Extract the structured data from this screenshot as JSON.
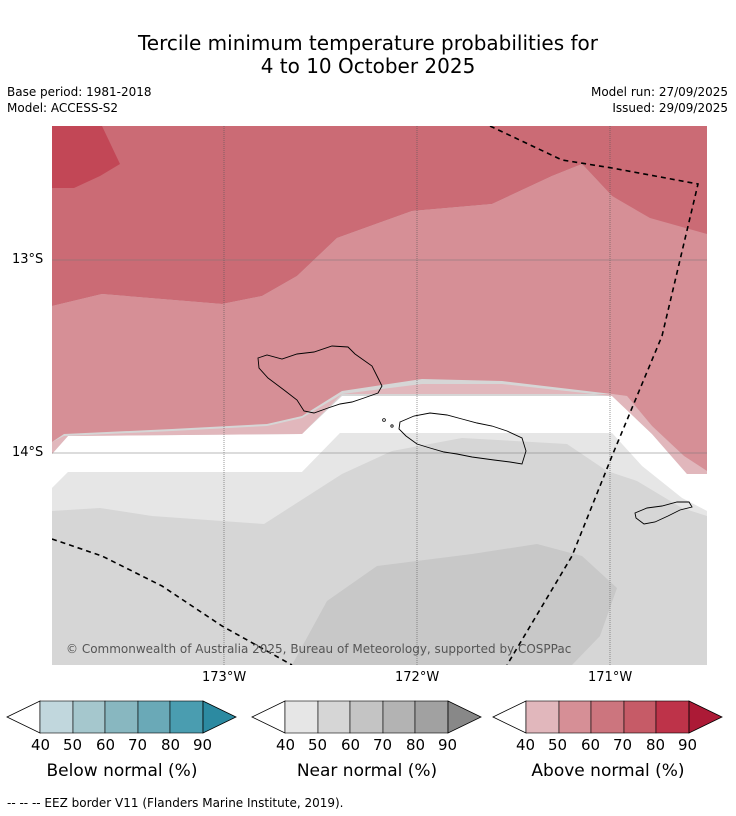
{
  "header": {
    "title_line1": "Tercile minimum temperature probabilities for",
    "title_line2": "4 to 10 October 2025",
    "base_period": "Base period: 1981-2018",
    "model": "Model: ACCESS-S2",
    "model_run": "Model run: 27/09/2025",
    "issued": "Issued: 29/09/2025"
  },
  "map": {
    "lat_labels": [
      "13°S",
      "14°S"
    ],
    "lon_labels": [
      "173°W",
      "172°W",
      "171°W"
    ],
    "copyright": "© Commonwealth of Australia 2025, Bureau of Meteorology, supported by COSPPac",
    "region_colors": {
      "above_80": "#c24756",
      "above_70": "#cb6b75",
      "above_60": "#d68f96",
      "above_50": "#e1b7bc",
      "neutral": "#ffffff",
      "near_40": "#e6e6e6",
      "near_50": "#d6d6d6",
      "near_60": "#c8c8c8"
    }
  },
  "colorbars": [
    {
      "label": "Below normal (%)",
      "ticks": [
        "40",
        "50",
        "60",
        "70",
        "80",
        "90"
      ],
      "colors": [
        "#c1d7dd",
        "#a5c7cd",
        "#88b7c0",
        "#6aa9b7",
        "#4a9db0",
        "#2c8aa1"
      ]
    },
    {
      "label": "Near normal (%)",
      "ticks": [
        "40",
        "50",
        "60",
        "70",
        "80",
        "90"
      ],
      "colors": [
        "#e6e6e6",
        "#d6d6d6",
        "#c4c4c4",
        "#b3b3b3",
        "#a1a1a1",
        "#888888"
      ]
    },
    {
      "label": "Above normal (%)",
      "ticks": [
        "40",
        "50",
        "60",
        "70",
        "80",
        "90"
      ],
      "colors": [
        "#e1b7bc",
        "#d68f96",
        "#cc757e",
        "#c65b67",
        "#be3349",
        "#ac1a36"
      ]
    }
  ],
  "footnote": "--  --  -- EEZ border V11 (Flanders Marine Institute, 2019)."
}
